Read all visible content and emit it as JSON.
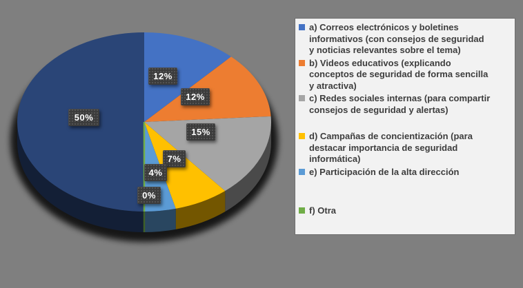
{
  "colors": {
    "background": "#7F7F7F",
    "legend_background": "#F2F2F2",
    "label_chip_background": "#3B3B3B",
    "label_chip_text": "#FFFFFF"
  },
  "chart_data": {
    "type": "pie",
    "style": "3d",
    "start_angle_deg": 0,
    "direction": "clockwise",
    "legend_position": "right",
    "title": "",
    "slices": [
      {
        "label": "a) Correos electrónicos y boletines informativos (con consejos de seguridad y noticias relevantes sobre el tema)",
        "value": 12,
        "pct_label": "12%",
        "color": "#4472C4"
      },
      {
        "label": "b) Videos educativos (explicando conceptos de seguridad de forma sencilla y atractiva)",
        "value": 12,
        "pct_label": "12%",
        "color": "#ED7D31"
      },
      {
        "label": "c) Redes sociales internas (para compartir consejos de seguridad y alertas)",
        "value": 15,
        "pct_label": "15%",
        "color": "#A5A5A5"
      },
      {
        "label": "d) Campañas de concientización (para destacar importancia de seguridad informática)",
        "value": 7,
        "pct_label": "7%",
        "color": "#FFC000"
      },
      {
        "label": "e) Participación de la alta dirección",
        "value": 4,
        "pct_label": "4%",
        "color": "#5B9BD5"
      },
      {
        "label": "f) Otra",
        "value": 0,
        "pct_label": "0%",
        "color": "#70AD47"
      },
      {
        "label": "",
        "value": 50,
        "pct_label": "50%",
        "color": "#2A4577"
      }
    ]
  },
  "legend": {
    "items": [
      {
        "color": "#4472C4",
        "text": "a) Correos electrónicos y boletines\ninformativos (con consejos de seguridad\ny noticias relevantes sobre el tema)"
      },
      {
        "color": "#ED7D31",
        "text": "b) Videos educativos (explicando\nconceptos de seguridad de forma sencilla\ny atractiva)"
      },
      {
        "color": "#A5A5A5",
        "text": "c) Redes sociales internas (para compartir\nconsejos de seguridad y alertas)"
      },
      {
        "color": "#FFC000",
        "text": "d) Campañas de concientización (para\ndestacar importancia de seguridad\ninformática)"
      },
      {
        "color": "#5B9BD5",
        "text": "e) Participación de la alta dirección"
      },
      {
        "color": "#70AD47",
        "text": "f) Otra"
      }
    ]
  }
}
